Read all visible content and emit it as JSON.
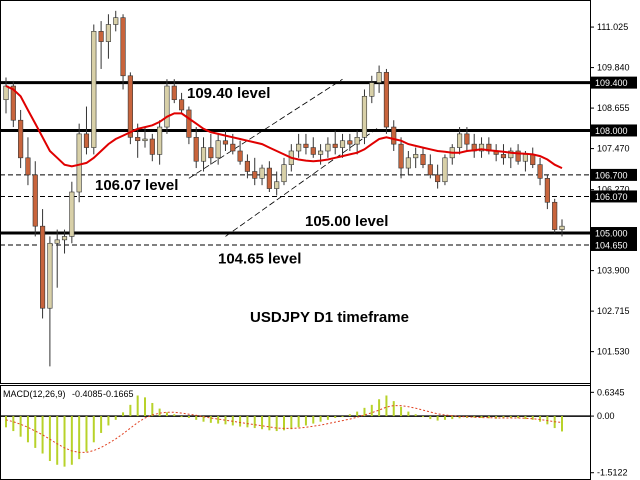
{
  "chart_data": {
    "type": "candlestick",
    "symbol_timeframe": "USDJPY D1 timeframe",
    "price_axis": {
      "range": [
        100.7,
        111.7
      ],
      "ticks": [
        "111.025",
        "109.840",
        "108.655",
        "107.470",
        "106.270",
        "103.900",
        "102.715",
        "101.530"
      ]
    },
    "highlighted_prices": [
      {
        "value": 109.4,
        "label": "109.400",
        "style": "solid"
      },
      {
        "value": 108.0,
        "label": "108.000",
        "style": "solid"
      },
      {
        "value": 106.7,
        "label": "106.700",
        "style": "dashed"
      },
      {
        "value": 106.07,
        "label": "106.070",
        "style": "dashed"
      },
      {
        "value": 105.0,
        "label": "105.000",
        "style": "solid"
      },
      {
        "value": 104.65,
        "label": "104.650",
        "style": "dashed"
      }
    ],
    "annotations": [
      {
        "text": "109.40 level",
        "price": 109.1
      },
      {
        "text": "106.07 level",
        "price": 106.4
      },
      {
        "text": "105.00 level",
        "price": 105.35
      },
      {
        "text": "104.65 level",
        "price": 104.25
      }
    ],
    "candles": [
      [
        108.9,
        109.55,
        108.5,
        109.3
      ],
      [
        109.3,
        109.45,
        108.1,
        108.3
      ],
      [
        108.3,
        108.6,
        106.9,
        107.2
      ],
      [
        107.2,
        107.8,
        106.4,
        106.7
      ],
      [
        106.7,
        107.1,
        104.9,
        105.2
      ],
      [
        105.2,
        105.7,
        102.5,
        102.8
      ],
      [
        102.8,
        104.9,
        101.1,
        104.7
      ],
      [
        104.7,
        105.1,
        103.4,
        104.8
      ],
      [
        104.8,
        105.1,
        104.4,
        104.9
      ],
      [
        104.9,
        106.5,
        104.7,
        106.2
      ],
      [
        106.2,
        108.2,
        105.9,
        107.9
      ],
      [
        107.9,
        108.7,
        107.3,
        107.5
      ],
      [
        107.5,
        111.1,
        107.3,
        110.9
      ],
      [
        110.9,
        111.2,
        109.8,
        110.6
      ],
      [
        110.6,
        111.4,
        110.1,
        111.1
      ],
      [
        111.1,
        111.5,
        110.9,
        111.3
      ],
      [
        111.3,
        111.4,
        109.2,
        109.6
      ],
      [
        109.6,
        109.7,
        107.6,
        107.8
      ],
      [
        107.8,
        108.2,
        107.2,
        107.7
      ],
      [
        107.7,
        108.1,
        107.5,
        107.75
      ],
      [
        107.75,
        107.9,
        107.1,
        107.3
      ],
      [
        107.3,
        108.3,
        107.0,
        108.1
      ],
      [
        108.1,
        109.5,
        107.9,
        109.3
      ],
      [
        109.3,
        109.5,
        108.8,
        108.9
      ],
      [
        108.9,
        109.1,
        108.5,
        108.6
      ],
      [
        108.6,
        108.7,
        107.6,
        107.8
      ],
      [
        107.8,
        108.1,
        106.9,
        107.1
      ],
      [
        107.1,
        107.8,
        106.8,
        107.5
      ],
      [
        107.5,
        107.9,
        107.0,
        107.2
      ],
      [
        107.2,
        107.9,
        107.0,
        107.7
      ],
      [
        107.7,
        108.0,
        107.4,
        107.6
      ],
      [
        107.6,
        107.9,
        107.3,
        107.4
      ],
      [
        107.4,
        107.7,
        107.0,
        107.1
      ],
      [
        107.1,
        107.3,
        106.6,
        106.8
      ],
      [
        106.8,
        107.2,
        106.4,
        106.6
      ],
      [
        106.6,
        107.0,
        106.4,
        106.9
      ],
      [
        106.9,
        107.1,
        106.2,
        106.3
      ],
      [
        106.3,
        106.8,
        106.1,
        106.5
      ],
      [
        106.5,
        107.2,
        106.4,
        107.0
      ],
      [
        107.0,
        107.6,
        106.8,
        107.4
      ],
      [
        107.4,
        107.9,
        107.2,
        107.6
      ],
      [
        107.6,
        107.9,
        107.3,
        107.5
      ],
      [
        107.5,
        107.8,
        107.2,
        107.3
      ],
      [
        107.3,
        107.6,
        107.0,
        107.4
      ],
      [
        107.4,
        107.8,
        107.2,
        107.6
      ],
      [
        107.6,
        108.0,
        107.3,
        107.5
      ],
      [
        107.5,
        107.9,
        107.2,
        107.7
      ],
      [
        107.7,
        107.9,
        107.4,
        107.6
      ],
      [
        107.6,
        108.0,
        107.3,
        107.8
      ],
      [
        107.8,
        109.2,
        107.6,
        109.0
      ],
      [
        109.0,
        109.6,
        108.8,
        109.4
      ],
      [
        109.4,
        109.9,
        109.1,
        109.7
      ],
      [
        109.7,
        109.8,
        107.9,
        108.1
      ],
      [
        108.1,
        108.3,
        107.4,
        107.6
      ],
      [
        107.6,
        107.8,
        106.6,
        106.9
      ],
      [
        106.9,
        107.4,
        106.7,
        107.2
      ],
      [
        107.2,
        107.5,
        106.9,
        107.3
      ],
      [
        107.3,
        107.5,
        106.9,
        107.0
      ],
      [
        107.0,
        107.3,
        106.6,
        106.7
      ],
      [
        106.7,
        107.0,
        106.3,
        106.5
      ],
      [
        106.5,
        107.3,
        106.4,
        107.2
      ],
      [
        107.2,
        107.6,
        107.0,
        107.5
      ],
      [
        107.5,
        108.1,
        107.3,
        107.9
      ],
      [
        107.9,
        108.1,
        107.4,
        107.6
      ],
      [
        107.6,
        107.9,
        107.2,
        107.4
      ],
      [
        107.4,
        107.8,
        107.2,
        107.6
      ],
      [
        107.6,
        107.8,
        107.3,
        107.4
      ],
      [
        107.4,
        107.6,
        107.1,
        107.3
      ],
      [
        107.3,
        107.6,
        107.0,
        107.2
      ],
      [
        107.2,
        107.5,
        106.9,
        107.4
      ],
      [
        107.4,
        107.6,
        107.0,
        107.1
      ],
      [
        107.1,
        107.4,
        106.8,
        107.3
      ],
      [
        107.3,
        107.5,
        106.9,
        107.0
      ],
      [
        107.0,
        107.2,
        106.4,
        106.6
      ],
      [
        106.6,
        106.7,
        105.7,
        105.9
      ],
      [
        105.9,
        106.0,
        105.0,
        105.1
      ],
      [
        105.1,
        105.4,
        104.9,
        105.2
      ]
    ],
    "moving_average": [
      109.3,
      109.2,
      109.0,
      108.6,
      108.2,
      107.8,
      107.4,
      107.2,
      107.0,
      106.95,
      107.0,
      107.05,
      107.2,
      107.4,
      107.6,
      107.75,
      107.85,
      107.95,
      108.05,
      108.1,
      108.15,
      108.25,
      108.4,
      108.5,
      108.5,
      108.35,
      108.2,
      108.05,
      107.95,
      107.9,
      107.85,
      107.8,
      107.75,
      107.7,
      107.65,
      107.6,
      107.5,
      107.4,
      107.3,
      107.2,
      107.15,
      107.12,
      107.1,
      107.12,
      107.15,
      107.2,
      107.25,
      107.3,
      107.35,
      107.45,
      107.6,
      107.75,
      107.8,
      107.75,
      107.7,
      107.6,
      107.55,
      107.5,
      107.45,
      107.4,
      107.38,
      107.35,
      107.35,
      107.4,
      107.42,
      107.45,
      107.42,
      107.4,
      107.38,
      107.35,
      107.33,
      107.32,
      107.3,
      107.25,
      107.15,
      107.0,
      106.9
    ],
    "macd": {
      "label": "MACD(12,26,9)",
      "main_value": "-0.4085",
      "signal_value": "-0.1665",
      "axis_ticks": [
        "0.6345",
        "0.00",
        "-1.5122"
      ],
      "range": [
        -1.6,
        0.75
      ],
      "histogram": [
        -0.3,
        -0.4,
        -0.55,
        -0.7,
        -0.85,
        -1.0,
        -1.2,
        -1.3,
        -1.35,
        -1.3,
        -1.15,
        -0.95,
        -0.7,
        -0.45,
        -0.25,
        -0.1,
        0.1,
        0.3,
        0.55,
        0.5,
        0.35,
        0.2,
        0.1,
        0.05,
        0.0,
        -0.05,
        -0.1,
        -0.15,
        -0.18,
        -0.2,
        -0.22,
        -0.25,
        -0.28,
        -0.3,
        -0.32,
        -0.35,
        -0.38,
        -0.4,
        -0.38,
        -0.35,
        -0.3,
        -0.25,
        -0.2,
        -0.15,
        -0.1,
        -0.05,
        0.0,
        0.05,
        0.12,
        0.22,
        0.3,
        0.45,
        0.55,
        0.4,
        0.25,
        0.12,
        0.05,
        -0.02,
        -0.08,
        -0.12,
        -0.1,
        -0.08,
        -0.06,
        -0.05,
        -0.04,
        -0.05,
        -0.06,
        -0.07,
        -0.06,
        -0.05,
        -0.06,
        -0.08,
        -0.1,
        -0.15,
        -0.22,
        -0.32,
        -0.41
      ],
      "signal": [
        -0.1,
        -0.15,
        -0.22,
        -0.3,
        -0.4,
        -0.5,
        -0.62,
        -0.74,
        -0.85,
        -0.93,
        -0.97,
        -0.97,
        -0.92,
        -0.84,
        -0.73,
        -0.61,
        -0.47,
        -0.32,
        -0.17,
        -0.05,
        0.03,
        0.08,
        0.1,
        0.1,
        0.08,
        0.05,
        0.02,
        -0.02,
        -0.05,
        -0.08,
        -0.11,
        -0.14,
        -0.17,
        -0.2,
        -0.23,
        -0.26,
        -0.29,
        -0.32,
        -0.33,
        -0.33,
        -0.32,
        -0.3,
        -0.27,
        -0.24,
        -0.2,
        -0.16,
        -0.12,
        -0.08,
        -0.03,
        0.03,
        0.09,
        0.16,
        0.24,
        0.28,
        0.28,
        0.25,
        0.21,
        0.16,
        0.11,
        0.06,
        0.03,
        0.01,
        -0.01,
        -0.02,
        -0.03,
        -0.04,
        -0.04,
        -0.05,
        -0.05,
        -0.05,
        -0.05,
        -0.06,
        -0.07,
        -0.09,
        -0.12,
        -0.15,
        -0.17
      ]
    },
    "colors": {
      "bull_body": "#d8d0a8",
      "bear_body": "#c8643c",
      "ma_line": "#e00000",
      "macd_hist": "#b8d22a",
      "macd_signal": "#e04020",
      "trendline": "#000000"
    }
  }
}
